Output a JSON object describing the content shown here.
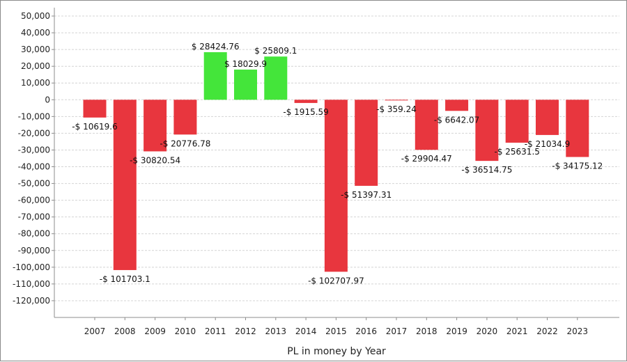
{
  "chart_data": {
    "type": "bar",
    "xlabel": "PL in money by Year",
    "ylabel": "",
    "ylim": [
      -130000,
      55000
    ],
    "y_ticks": [
      50000,
      40000,
      30000,
      20000,
      10000,
      0,
      -10000,
      -20000,
      -30000,
      -40000,
      -50000,
      -60000,
      -70000,
      -80000,
      -90000,
      -100000,
      -110000,
      -120000
    ],
    "y_tick_labels": [
      "50,000",
      "40,000",
      "30,000",
      "20,000",
      "10,000",
      "0",
      "-10,000",
      "-20,000",
      "-30,000",
      "-40,000",
      "-50,000",
      "-60,000",
      "-70,000",
      "-80,000",
      "-90,000",
      "-100,000",
      "-110,000",
      "-120,000"
    ],
    "grid": true,
    "categories": [
      "2007",
      "2008",
      "2009",
      "2010",
      "2011",
      "2012",
      "2013",
      "2014",
      "2015",
      "2016",
      "2017",
      "2018",
      "2019",
      "2020",
      "2021",
      "2022",
      "2023"
    ],
    "values": [
      -10619.6,
      -101703.1,
      -30820.54,
      -20776.78,
      28424.76,
      18029.9,
      25809.1,
      -1915.59,
      -102707.97,
      -51397.31,
      -359.24,
      -29904.47,
      -6642.07,
      -36514.75,
      -25631.5,
      -21034.9,
      -34175.12
    ],
    "data_labels": [
      "-$ 10619.6",
      "-$ 101703.1",
      "-$ 30820.54",
      "-$ 20776.78",
      "$ 28424.76",
      "$ 18029.9",
      "$ 25809.1",
      "-$ 1915.59",
      "-$ 102707.97",
      "-$ 51397.31",
      "-$ 359.24",
      "-$ 29904.47",
      "-$ 6642.07",
      "-$ 36514.75",
      "-$ 25631.5",
      "-$ 21034.9",
      "-$ 34175.12"
    ],
    "colors": {
      "positive": "#44e53a",
      "negative": "#e8363e",
      "grid": "#d4d4d4",
      "axis": "#8c8c8c"
    }
  }
}
